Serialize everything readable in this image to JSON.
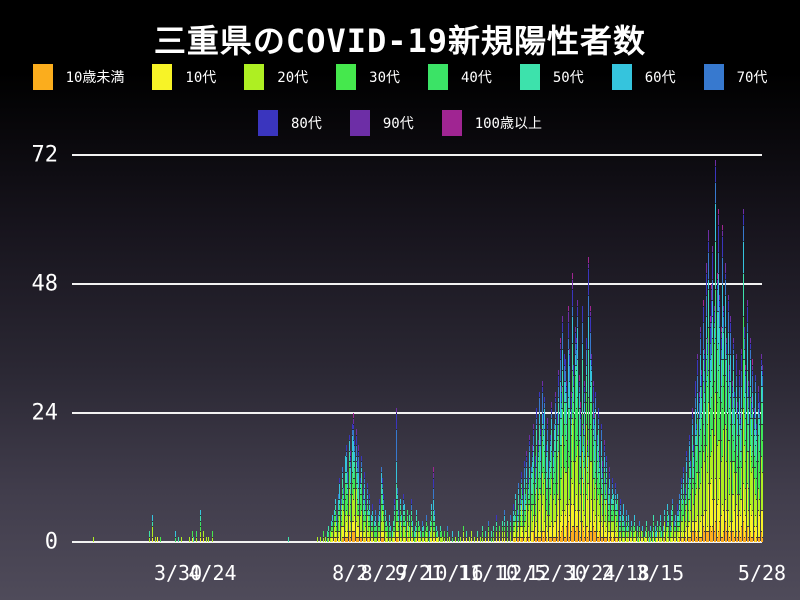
{
  "title": "三重県のCOVID-19新規陽性者数",
  "colors": {
    "background_top": "#000000",
    "background_bottom": "#4f4b5a",
    "gridline": "#f2f2f2",
    "text": "#ffffff"
  },
  "chart_data": {
    "type": "bar",
    "stacked": true,
    "title": "三重県のCOVID-19新規陽性者数",
    "xlabel": "",
    "ylabel": "",
    "ylim": [
      0,
      72
    ],
    "y_ticks": [
      0,
      24,
      48,
      72
    ],
    "grid": "horizontal",
    "legend_position": "top",
    "start_date": "2020-01-13",
    "end_date": "2021-05-28",
    "days_total": 502,
    "x_tick_labels": [
      {
        "label": "3/30",
        "day": 77
      },
      {
        "label": "4/24",
        "day": 102
      },
      {
        "label": "8/2",
        "day": 202
      },
      {
        "label": "8/27",
        "day": 227
      },
      {
        "label": "9/21",
        "day": 252
      },
      {
        "label": "10/16",
        "day": 277
      },
      {
        "label": "11/10",
        "day": 302
      },
      {
        "label": "12/5",
        "day": 327
      },
      {
        "label": "12/30",
        "day": 352
      },
      {
        "label": "1/24",
        "day": 377
      },
      {
        "label": "2/18",
        "day": 402
      },
      {
        "label": "3/15",
        "day": 427
      },
      {
        "label": "5/28",
        "day": 501
      }
    ],
    "age_groups": [
      {
        "label": "10歳未満",
        "color": "#fbad1d",
        "share": 0.05
      },
      {
        "label": "10代",
        "color": "#f7f327",
        "share": 0.11
      },
      {
        "label": "20代",
        "color": "#aeef22",
        "share": 0.22
      },
      {
        "label": "30代",
        "color": "#45e84d",
        "share": 0.13
      },
      {
        "label": "40代",
        "color": "#3be366",
        "share": 0.12
      },
      {
        "label": "50代",
        "color": "#3de2ac",
        "share": 0.12
      },
      {
        "label": "60代",
        "color": "#35c4dd",
        "share": 0.1
      },
      {
        "label": "70代",
        "color": "#3779cf",
        "share": 0.07
      },
      {
        "label": "80代",
        "color": "#3a35be",
        "share": 0.05
      },
      {
        "label": "90代",
        "color": "#6d2ea6",
        "share": 0.02
      },
      {
        "label": "100歳以上",
        "color": "#a02592",
        "share": 0.01
      }
    ],
    "overrides": {
      "235": [
        1,
        1,
        2,
        2,
        2,
        3,
        4,
        6,
        3,
        1,
        0
      ],
      "262": [
        0,
        1,
        1,
        1,
        1,
        2,
        2,
        2,
        2,
        1,
        1
      ],
      "467": [
        4,
        8,
        16,
        10,
        9,
        9,
        7,
        4,
        3,
        1,
        0
      ],
      "487": [
        4,
        7,
        14,
        9,
        8,
        8,
        6,
        3,
        2,
        1,
        0
      ]
    },
    "points": [
      [
        15,
        1
      ],
      [
        56,
        2
      ],
      [
        58,
        5
      ],
      [
        60,
        1
      ],
      [
        62,
        1
      ],
      [
        64,
        1
      ],
      [
        75,
        2
      ],
      [
        77,
        1
      ],
      [
        79,
        1
      ],
      [
        85,
        1
      ],
      [
        87,
        2
      ],
      [
        88,
        1
      ],
      [
        90,
        2
      ],
      [
        93,
        6
      ],
      [
        95,
        2
      ],
      [
        97,
        1
      ],
      [
        99,
        1
      ],
      [
        102,
        2
      ],
      [
        157,
        1
      ],
      [
        178,
        1
      ],
      [
        180,
        1
      ],
      [
        182,
        2
      ],
      [
        184,
        1
      ],
      [
        185,
        2
      ],
      [
        186,
        3
      ],
      [
        187,
        2
      ],
      [
        188,
        4
      ],
      [
        189,
        5
      ],
      [
        190,
        6
      ],
      [
        191,
        8
      ],
      [
        192,
        5
      ],
      [
        193,
        9
      ],
      [
        194,
        12
      ],
      [
        195,
        8
      ],
      [
        196,
        14
      ],
      [
        197,
        10
      ],
      [
        198,
        16
      ],
      [
        199,
        18
      ],
      [
        200,
        13
      ],
      [
        201,
        20
      ],
      [
        202,
        17
      ],
      [
        203,
        22
      ],
      [
        204,
        24
      ],
      [
        205,
        19
      ],
      [
        206,
        21
      ],
      [
        207,
        15
      ],
      [
        208,
        18
      ],
      [
        209,
        12
      ],
      [
        210,
        16
      ],
      [
        211,
        10
      ],
      [
        212,
        13
      ],
      [
        213,
        8
      ],
      [
        214,
        11
      ],
      [
        215,
        6
      ],
      [
        216,
        9
      ],
      [
        217,
        5
      ],
      [
        218,
        7
      ],
      [
        219,
        4
      ],
      [
        220,
        6
      ],
      [
        221,
        3
      ],
      [
        222,
        5
      ],
      [
        223,
        8
      ],
      [
        224,
        14
      ],
      [
        225,
        12
      ],
      [
        226,
        9
      ],
      [
        227,
        6
      ],
      [
        228,
        4
      ],
      [
        229,
        3
      ],
      [
        230,
        5
      ],
      [
        231,
        3
      ],
      [
        232,
        2
      ],
      [
        233,
        4
      ],
      [
        234,
        8
      ],
      [
        235,
        25
      ],
      [
        236,
        10
      ],
      [
        237,
        6
      ],
      [
        238,
        8
      ],
      [
        239,
        5
      ],
      [
        240,
        9
      ],
      [
        241,
        7
      ],
      [
        242,
        4
      ],
      [
        243,
        6
      ],
      [
        244,
        3
      ],
      [
        245,
        5
      ],
      [
        246,
        8
      ],
      [
        247,
        4
      ],
      [
        248,
        2
      ],
      [
        249,
        3
      ],
      [
        250,
        6
      ],
      [
        251,
        4
      ],
      [
        252,
        3
      ],
      [
        253,
        2
      ],
      [
        254,
        4
      ],
      [
        255,
        3
      ],
      [
        256,
        2
      ],
      [
        257,
        5
      ],
      [
        258,
        3
      ],
      [
        259,
        2
      ],
      [
        260,
        4
      ],
      [
        261,
        7
      ],
      [
        262,
        14
      ],
      [
        263,
        6
      ],
      [
        264,
        3
      ],
      [
        265,
        2
      ],
      [
        266,
        1
      ],
      [
        267,
        3
      ],
      [
        268,
        2
      ],
      [
        269,
        1
      ],
      [
        270,
        2
      ],
      [
        272,
        3
      ],
      [
        274,
        1
      ],
      [
        276,
        2
      ],
      [
        278,
        1
      ],
      [
        280,
        2
      ],
      [
        282,
        1
      ],
      [
        284,
        3
      ],
      [
        286,
        2
      ],
      [
        288,
        1
      ],
      [
        290,
        2
      ],
      [
        292,
        1
      ],
      [
        294,
        2
      ],
      [
        296,
        1
      ],
      [
        298,
        3
      ],
      [
        300,
        2
      ],
      [
        302,
        4
      ],
      [
        304,
        2
      ],
      [
        306,
        3
      ],
      [
        308,
        5
      ],
      [
        310,
        3
      ],
      [
        312,
        4
      ],
      [
        314,
        6
      ],
      [
        316,
        4
      ],
      [
        318,
        5
      ],
      [
        320,
        7
      ],
      [
        321,
        5
      ],
      [
        322,
        9
      ],
      [
        323,
        6
      ],
      [
        324,
        11
      ],
      [
        325,
        8
      ],
      [
        326,
        13
      ],
      [
        327,
        10
      ],
      [
        328,
        15
      ],
      [
        329,
        9
      ],
      [
        330,
        17
      ],
      [
        331,
        12
      ],
      [
        332,
        20
      ],
      [
        333,
        14
      ],
      [
        334,
        18
      ],
      [
        335,
        22
      ],
      [
        336,
        16
      ],
      [
        337,
        25
      ],
      [
        338,
        19
      ],
      [
        339,
        28
      ],
      [
        340,
        21
      ],
      [
        341,
        30
      ],
      [
        342,
        24
      ],
      [
        343,
        27
      ],
      [
        344,
        18
      ],
      [
        345,
        23
      ],
      [
        346,
        15
      ],
      [
        347,
        20
      ],
      [
        348,
        26
      ],
      [
        349,
        17
      ],
      [
        350,
        22
      ],
      [
        351,
        28
      ],
      [
        352,
        24
      ],
      [
        353,
        32
      ],
      [
        354,
        38
      ],
      [
        355,
        29
      ],
      [
        356,
        42
      ],
      [
        357,
        35
      ],
      [
        358,
        34
      ],
      [
        359,
        30
      ],
      [
        360,
        44
      ],
      [
        361,
        36
      ],
      [
        362,
        28
      ],
      [
        363,
        50
      ],
      [
        364,
        33
      ],
      [
        365,
        40
      ],
      [
        366,
        38
      ],
      [
        367,
        45
      ],
      [
        368,
        31
      ],
      [
        369,
        26
      ],
      [
        370,
        44
      ],
      [
        371,
        22
      ],
      [
        372,
        30
      ],
      [
        373,
        38
      ],
      [
        374,
        19
      ],
      [
        375,
        53
      ],
      [
        376,
        44
      ],
      [
        377,
        35
      ],
      [
        378,
        30
      ],
      [
        379,
        24
      ],
      [
        380,
        28
      ],
      [
        381,
        20
      ],
      [
        382,
        25
      ],
      [
        383,
        17
      ],
      [
        384,
        22
      ],
      [
        385,
        15
      ],
      [
        386,
        19
      ],
      [
        387,
        12
      ],
      [
        388,
        16
      ],
      [
        389,
        10
      ],
      [
        390,
        14
      ],
      [
        391,
        8
      ],
      [
        392,
        12
      ],
      [
        393,
        9
      ],
      [
        394,
        11
      ],
      [
        395,
        7
      ],
      [
        396,
        9
      ],
      [
        397,
        6
      ],
      [
        398,
        8
      ],
      [
        399,
        5
      ],
      [
        400,
        7
      ],
      [
        401,
        4
      ],
      [
        402,
        6
      ],
      [
        403,
        3
      ],
      [
        404,
        5
      ],
      [
        405,
        2
      ],
      [
        406,
        4
      ],
      [
        407,
        3
      ],
      [
        408,
        5
      ],
      [
        409,
        2
      ],
      [
        410,
        3
      ],
      [
        411,
        1
      ],
      [
        412,
        4
      ],
      [
        413,
        2
      ],
      [
        414,
        3
      ],
      [
        415,
        1
      ],
      [
        416,
        2
      ],
      [
        417,
        4
      ],
      [
        418,
        2
      ],
      [
        419,
        1
      ],
      [
        420,
        3
      ],
      [
        421,
        2
      ],
      [
        422,
        5
      ],
      [
        423,
        3
      ],
      [
        424,
        2
      ],
      [
        425,
        4
      ],
      [
        426,
        3
      ],
      [
        427,
        5
      ],
      [
        428,
        2
      ],
      [
        429,
        3
      ],
      [
        430,
        6
      ],
      [
        431,
        4
      ],
      [
        432,
        7
      ],
      [
        433,
        5
      ],
      [
        434,
        3
      ],
      [
        435,
        6
      ],
      [
        436,
        8
      ],
      [
        437,
        4
      ],
      [
        438,
        5
      ],
      [
        439,
        7
      ],
      [
        440,
        6
      ],
      [
        441,
        9
      ],
      [
        442,
        12
      ],
      [
        443,
        8
      ],
      [
        444,
        14
      ],
      [
        445,
        10
      ],
      [
        446,
        17
      ],
      [
        447,
        12
      ],
      [
        448,
        20
      ],
      [
        449,
        15
      ],
      [
        450,
        25
      ],
      [
        451,
        18
      ],
      [
        452,
        30
      ],
      [
        453,
        22
      ],
      [
        454,
        35
      ],
      [
        455,
        28
      ],
      [
        456,
        40
      ],
      [
        457,
        32
      ],
      [
        458,
        45
      ],
      [
        459,
        36
      ],
      [
        460,
        52
      ],
      [
        461,
        38
      ],
      [
        462,
        58
      ],
      [
        463,
        42
      ],
      [
        464,
        48
      ],
      [
        465,
        55
      ],
      [
        466,
        44
      ],
      [
        467,
        71
      ],
      [
        468,
        50
      ],
      [
        469,
        62
      ],
      [
        470,
        46
      ],
      [
        471,
        40
      ],
      [
        472,
        59
      ],
      [
        473,
        44
      ],
      [
        474,
        52
      ],
      [
        475,
        38
      ],
      [
        476,
        46
      ],
      [
        477,
        33
      ],
      [
        478,
        42
      ],
      [
        479,
        30
      ],
      [
        480,
        38
      ],
      [
        481,
        28
      ],
      [
        482,
        35
      ],
      [
        483,
        26
      ],
      [
        484,
        32
      ],
      [
        485,
        24
      ],
      [
        486,
        36
      ],
      [
        487,
        62
      ],
      [
        488,
        40
      ],
      [
        489,
        33
      ],
      [
        490,
        45
      ],
      [
        491,
        30
      ],
      [
        492,
        38
      ],
      [
        493,
        27
      ],
      [
        494,
        34
      ],
      [
        495,
        25
      ],
      [
        496,
        31
      ],
      [
        497,
        22
      ],
      [
        498,
        29
      ],
      [
        499,
        26
      ],
      [
        500,
        35
      ],
      [
        501,
        33
      ]
    ]
  }
}
